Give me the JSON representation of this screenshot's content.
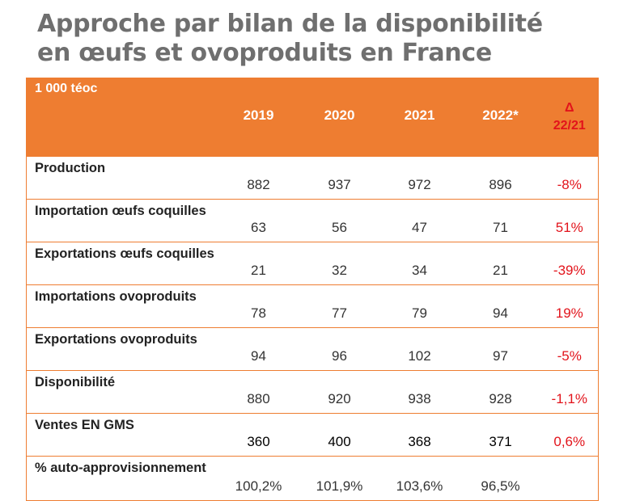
{
  "title": {
    "line1": "Approche par bilan de la disponibilité",
    "line2": "en œufs et ovoproduits en France"
  },
  "table": {
    "unit": "1 000 téoc",
    "years": [
      "2019",
      "2020",
      "2021",
      "2022*"
    ],
    "delta_header": {
      "symbol": "Δ",
      "period": "22/21"
    },
    "rows": [
      {
        "label": "Production",
        "values": [
          "882",
          "937",
          "972",
          "896"
        ],
        "delta": "-8%"
      },
      {
        "label": "Importation œufs coquilles",
        "values": [
          "63",
          "56",
          "47",
          "71"
        ],
        "delta": "51%"
      },
      {
        "label": "Exportations œufs coquilles",
        "values": [
          "21",
          "32",
          "34",
          "21"
        ],
        "delta": "-39%"
      },
      {
        "label": "Importations ovoproduits",
        "values": [
          "78",
          "77",
          "79",
          "94"
        ],
        "delta": "19%"
      },
      {
        "label": "Exportations ovoproduits",
        "values": [
          "94",
          "96",
          "102",
          "97"
        ],
        "delta": "-5%"
      },
      {
        "label": "Disponibilité",
        "values": [
          "880",
          "920",
          "938",
          "928"
        ],
        "delta": "-1,1%"
      },
      {
        "label": "Ventes EN GMS",
        "values": [
          "360",
          "400",
          "368",
          "371"
        ],
        "delta": "0,6%"
      },
      {
        "label": "% auto-approvisionnement",
        "values": [
          "100,2%",
          "101,9%",
          "103,6%",
          "96,5%"
        ],
        "delta": ""
      }
    ]
  },
  "colors": {
    "header_bg": "#ee7d31",
    "title_text": "#6f6f6f",
    "delta_text": "#e2131b"
  }
}
